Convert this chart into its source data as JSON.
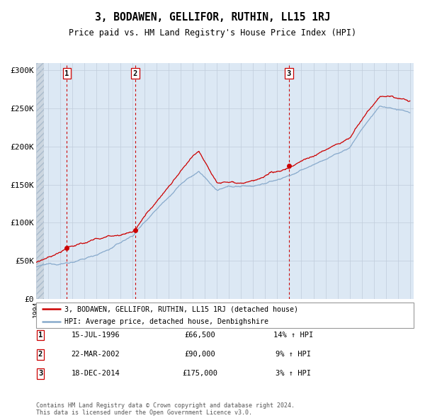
{
  "title": "3, BODAWEN, GELLIFOR, RUTHIN, LL15 1RJ",
  "subtitle": "Price paid vs. HM Land Registry's House Price Index (HPI)",
  "y_ticks": [
    0,
    50000,
    100000,
    150000,
    200000,
    250000,
    300000
  ],
  "y_tick_labels": [
    "£0",
    "£50K",
    "£100K",
    "£150K",
    "£200K",
    "£250K",
    "£300K"
  ],
  "sale_points": [
    {
      "year": 1996.54,
      "price": 66500,
      "label": "1"
    },
    {
      "year": 2002.22,
      "price": 90000,
      "label": "2"
    },
    {
      "year": 2014.96,
      "price": 175000,
      "label": "3"
    }
  ],
  "legend_line1": "3, BODAWEN, GELLIFOR, RUTHIN, LL15 1RJ (detached house)",
  "legend_line2": "HPI: Average price, detached house, Denbighshire",
  "table_rows": [
    {
      "num": "1",
      "date": "15-JUL-1996",
      "price": "£66,500",
      "hpi": "14% ↑ HPI"
    },
    {
      "num": "2",
      "date": "22-MAR-2002",
      "price": "£90,000",
      "hpi": "9% ↑ HPI"
    },
    {
      "num": "3",
      "date": "18-DEC-2014",
      "price": "£175,000",
      "hpi": "3% ↑ HPI"
    }
  ],
  "footer": "Contains HM Land Registry data © Crown copyright and database right 2024.\nThis data is licensed under the Open Government Licence v3.0.",
  "plot_bg": "#dce8f4",
  "red_color": "#cc0000",
  "blue_color": "#88aacc",
  "hatch_color": "#c0ccd8"
}
